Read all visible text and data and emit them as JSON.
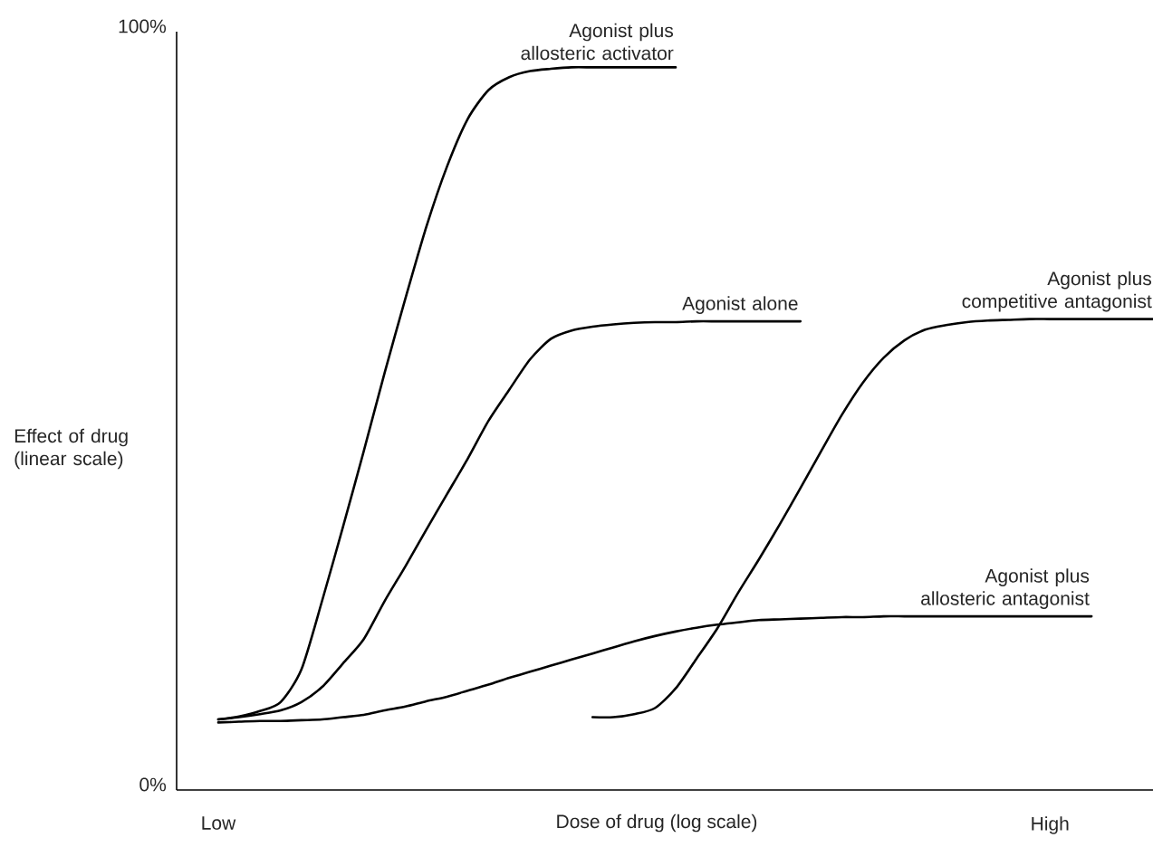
{
  "chart_data": {
    "type": "line",
    "xlabel": "Dose of drug (log scale)",
    "ylabel": "Effect of drug (linear scale)",
    "ylim": [
      0,
      100
    ],
    "categories": [
      "Low",
      null,
      null,
      null,
      null,
      null,
      null,
      null,
      null,
      null,
      null,
      null,
      null,
      null,
      null,
      null,
      null,
      null,
      null,
      null,
      null,
      null,
      null,
      null,
      null,
      null,
      null,
      null,
      null,
      null,
      null,
      null,
      null,
      null,
      null,
      null,
      null,
      null,
      null,
      null,
      "High",
      null,
      null,
      null,
      null,
      null
    ],
    "yticks": [
      {
        "value": 0,
        "label": "0%"
      },
      {
        "value": 100,
        "label": "100%"
      }
    ],
    "line_style": "solid",
    "series": [
      {
        "name": "Agonist plus allosteric activator",
        "color": "#000000",
        "values": [
          9.3,
          9.7,
          10.4,
          11.6,
          15.9,
          25,
          34.7,
          44.7,
          55,
          64.8,
          74.2,
          82.2,
          88.5,
          92.3,
          94,
          94.8,
          95.1,
          95.3,
          95.3,
          95.3,
          95.3,
          95.3,
          95.3,
          null,
          null,
          null,
          null,
          null,
          null,
          null,
          null,
          null,
          null,
          null,
          null,
          null,
          null,
          null,
          null,
          null,
          null,
          null,
          null,
          null,
          null,
          null
        ]
      },
      {
        "name": "Agonist alone",
        "color": "#000000",
        "values": [
          9.3,
          9.6,
          10.0,
          10.5,
          11.6,
          13.6,
          16.7,
          19.9,
          24.9,
          29.5,
          34.3,
          39.0,
          43.7,
          48.7,
          52.8,
          56.8,
          59.5,
          60.6,
          61.1,
          61.4,
          61.6,
          61.7,
          61.7,
          61.8,
          61.8,
          61.8,
          61.8,
          61.8,
          61.8,
          null,
          null,
          null,
          null,
          null,
          null,
          null,
          null,
          null,
          null,
          null,
          null,
          null,
          null,
          null,
          null,
          null
        ]
      },
      {
        "name": "Agonist plus competitive antagonist",
        "color": "#000000",
        "values": [
          null,
          null,
          null,
          null,
          null,
          null,
          null,
          null,
          null,
          null,
          null,
          null,
          null,
          null,
          null,
          null,
          null,
          null,
          9.6,
          9.6,
          10.0,
          10.8,
          13.4,
          17.3,
          21.3,
          26.0,
          30.4,
          35.0,
          39.8,
          44.7,
          49.5,
          53.7,
          57.0,
          59.3,
          60.7,
          61.3,
          61.7,
          61.9,
          62.0,
          62.1,
          62.1,
          62.1,
          62.1,
          62.1,
          62.1,
          62.1
        ]
      },
      {
        "name": "Agonist plus allosteric antagonist",
        "color": "#000000",
        "values": [
          8.9,
          9.0,
          9.1,
          9.1,
          9.2,
          9.3,
          9.6,
          9.9,
          10.5,
          11.0,
          11.7,
          12.3,
          13.1,
          13.9,
          14.8,
          15.6,
          16.4,
          17.2,
          18.0,
          18.8,
          19.6,
          20.3,
          20.9,
          21.4,
          21.8,
          22.1,
          22.4,
          22.5,
          22.6,
          22.7,
          22.8,
          22.8,
          22.9,
          22.9,
          22.9,
          22.9,
          22.9,
          22.9,
          22.9,
          22.9,
          22.9,
          22.9,
          22.9,
          null,
          null,
          null
        ]
      }
    ]
  }
}
